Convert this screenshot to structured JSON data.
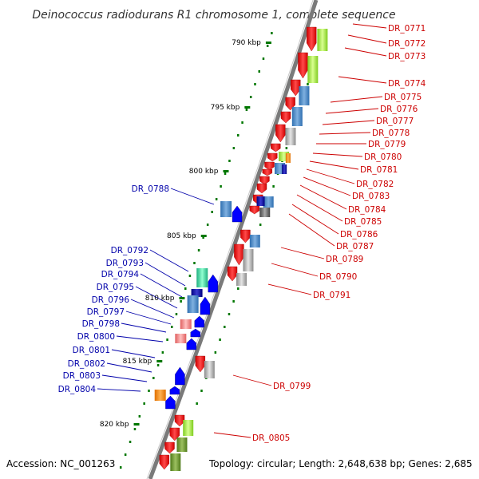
{
  "title": "Deinococcus radiodurans R1 chromosome 1, complete sequence",
  "accession": "Accession: NC_001263",
  "topology": "Topology: circular; Length: 2,648,638 bp; Genes: 2,685",
  "colors": {
    "forward": "#ff0000",
    "reverse": "#0000ff",
    "backbone": "#7a7a7a",
    "ticks": "#007700",
    "label_fwd": "#cc0000",
    "label_rev": "#0000aa"
  },
  "scale": [
    {
      "label": "790 kbp"
    },
    {
      "label": "795 kbp"
    },
    {
      "label": "800 kbp"
    },
    {
      "label": "805 kbp"
    },
    {
      "label": "810 kbp"
    },
    {
      "label": "815 kbp"
    },
    {
      "label": "820 kbp"
    }
  ],
  "forward_labels": [
    {
      "text": "DR_0771"
    },
    {
      "text": "DR_0772"
    },
    {
      "text": "DR_0773"
    },
    {
      "text": "DR_0774"
    },
    {
      "text": "DR_0775"
    },
    {
      "text": "DR_0776"
    },
    {
      "text": "DR_0777"
    },
    {
      "text": "DR_0778"
    },
    {
      "text": "DR_0779"
    },
    {
      "text": "DR_0780"
    },
    {
      "text": "DR_0781"
    },
    {
      "text": "DR_0782"
    },
    {
      "text": "DR_0783"
    },
    {
      "text": "DR_0784"
    },
    {
      "text": "DR_0785"
    },
    {
      "text": "DR_0786"
    },
    {
      "text": "DR_0787"
    },
    {
      "text": "DR_0789"
    },
    {
      "text": "DR_0790"
    },
    {
      "text": "DR_0791"
    },
    {
      "text": "DR_0799"
    },
    {
      "text": "DR_0805"
    }
  ],
  "reverse_labels": [
    {
      "text": "DR_0788"
    },
    {
      "text": "DR_0792"
    },
    {
      "text": "DR_0793"
    },
    {
      "text": "DR_0794"
    },
    {
      "text": "DR_0795"
    },
    {
      "text": "DR_0796"
    },
    {
      "text": "DR_0797"
    },
    {
      "text": "DR_0798"
    },
    {
      "text": "DR_0800"
    },
    {
      "text": "DR_0801"
    },
    {
      "text": "DR_0802"
    },
    {
      "text": "DR_0803"
    },
    {
      "text": "DR_0804"
    }
  ]
}
